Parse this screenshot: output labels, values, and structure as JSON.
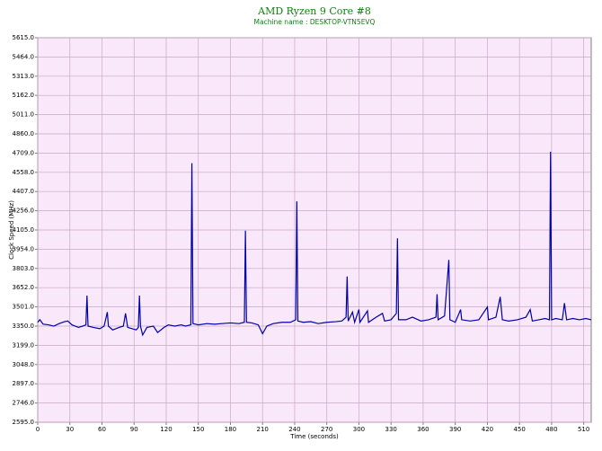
{
  "chart_data": {
    "type": "line",
    "title": "AMD Ryzen 9 Core #8",
    "subtitle": "Machine name : DESKTOP-VTN5EVQ",
    "x_label": "Time (seconds)",
    "y_label": "Clock Speed (MHz)",
    "xlim": [
      0,
      517
    ],
    "ylim": [
      2595,
      5615
    ],
    "xticks": [
      0,
      30,
      60,
      90,
      120,
      150,
      180,
      210,
      240,
      270,
      300,
      330,
      360,
      390,
      420,
      450,
      480,
      510
    ],
    "yticks": [
      {
        "value": 2595,
        "label": "2595.0"
      },
      {
        "value": 2746,
        "label": "2746.0"
      },
      {
        "value": 2897,
        "label": "2897.0"
      },
      {
        "value": 3048,
        "label": "3048.0"
      },
      {
        "value": 3199,
        "label": "3199.0"
      },
      {
        "value": 3350,
        "label": "3350.0"
      },
      {
        "value": 3501,
        "label": "3501.0"
      },
      {
        "value": 3652,
        "label": "3652.0"
      },
      {
        "value": 3803,
        "label": "3803.0"
      },
      {
        "value": 3954,
        "label": "3954.0"
      },
      {
        "value": 4105,
        "label": "4105.0"
      },
      {
        "value": 4256,
        "label": "4256.0"
      },
      {
        "value": 4407,
        "label": "4407.0"
      },
      {
        "value": 4558,
        "label": "4558.0"
      },
      {
        "value": 4709,
        "label": "4709.0"
      },
      {
        "value": 4860,
        "label": "4860.0"
      },
      {
        "value": 5011,
        "label": "5011.0"
      },
      {
        "value": 5162,
        "label": "5162.0"
      },
      {
        "value": 5313,
        "label": "5313.0"
      },
      {
        "value": 5464,
        "label": "5464.0"
      },
      {
        "value": 5615,
        "label": "5615.0"
      }
    ],
    "grid": true,
    "x": [
      0,
      2,
      5,
      10,
      15,
      20,
      25,
      28,
      32,
      38,
      42,
      45,
      46,
      47,
      52,
      58,
      62,
      65,
      66,
      70,
      76,
      80,
      82,
      84,
      88,
      92,
      94,
      95,
      96,
      98,
      102,
      108,
      112,
      118,
      122,
      128,
      134,
      138,
      143,
      144,
      145,
      150,
      158,
      165,
      172,
      180,
      188,
      193,
      194,
      195,
      200,
      206,
      210,
      214,
      220,
      228,
      236,
      241,
      242,
      243,
      248,
      255,
      262,
      270,
      278,
      284,
      288,
      289,
      290,
      294,
      296,
      300,
      301,
      308,
      309,
      316,
      322,
      324,
      330,
      335,
      336,
      337,
      344,
      350,
      358,
      365,
      372,
      373,
      374,
      380,
      384,
      385,
      390,
      395,
      396,
      404,
      412,
      420,
      421,
      428,
      432,
      434,
      440,
      448,
      456,
      460,
      462,
      468,
      474,
      478,
      479,
      480,
      484,
      490,
      492,
      494,
      500,
      506,
      512,
      517
    ],
    "series": [
      {
        "color": "#0000a8",
        "values": [
          3380,
          3400,
          3365,
          3360,
          3350,
          3370,
          3385,
          3390,
          3360,
          3340,
          3350,
          3360,
          3590,
          3350,
          3340,
          3330,
          3350,
          3460,
          3350,
          3320,
          3340,
          3350,
          3450,
          3340,
          3330,
          3320,
          3340,
          3590,
          3350,
          3280,
          3340,
          3350,
          3300,
          3340,
          3360,
          3350,
          3360,
          3350,
          3360,
          4630,
          3370,
          3360,
          3370,
          3365,
          3370,
          3375,
          3370,
          3380,
          4100,
          3380,
          3375,
          3360,
          3290,
          3350,
          3370,
          3380,
          3380,
          3400,
          4330,
          3390,
          3380,
          3385,
          3370,
          3380,
          3385,
          3390,
          3420,
          3740,
          3390,
          3460,
          3380,
          3480,
          3380,
          3470,
          3380,
          3420,
          3450,
          3390,
          3400,
          3450,
          4040,
          3400,
          3400,
          3420,
          3390,
          3400,
          3420,
          3600,
          3400,
          3430,
          3870,
          3400,
          3380,
          3480,
          3400,
          3390,
          3400,
          3500,
          3400,
          3420,
          3580,
          3400,
          3390,
          3400,
          3420,
          3480,
          3390,
          3400,
          3410,
          3400,
          4720,
          3400,
          3410,
          3400,
          3530,
          3400,
          3410,
          3400,
          3410,
          3400
        ]
      }
    ]
  }
}
